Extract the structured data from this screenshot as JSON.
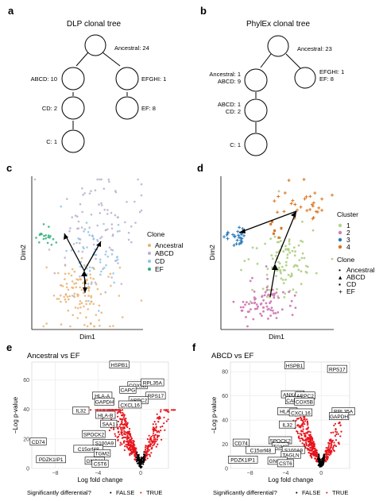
{
  "panels": {
    "a": {
      "letter": "a",
      "title": "DLP clonal tree",
      "nodes": [
        {
          "id": "anc",
          "label": "Ancestral: 24"
        },
        {
          "id": "abcd",
          "label": "ABCD: 10"
        },
        {
          "id": "efghi",
          "label": "EFGHI: 1"
        },
        {
          "id": "cd",
          "label": "CD: 2"
        },
        {
          "id": "ef",
          "label": "EF: 8"
        },
        {
          "id": "c",
          "label": "C: 1"
        }
      ]
    },
    "b": {
      "letter": "b",
      "title": "PhylEx clonal tree",
      "nodes": [
        {
          "id": "anc",
          "label": "Ancestral: 23"
        },
        {
          "id": "anc1",
          "label_lines": [
            "Ancestral: 1",
            "ABCD: 9"
          ]
        },
        {
          "id": "efghi",
          "label_lines": [
            "EFGHI: 1",
            "EF: 8"
          ]
        },
        {
          "id": "abcd1",
          "label_lines": [
            "ABCD: 1",
            "CD: 2"
          ]
        },
        {
          "id": "c",
          "label": "C: 1"
        }
      ]
    },
    "c": {
      "letter": "c",
      "xlabel": "Dim1",
      "ylabel": "Dim2",
      "legend_title": "Clone",
      "legend": [
        {
          "name": "Ancestral",
          "color": "#e8b270"
        },
        {
          "name": "ABCD",
          "color": "#b8b0cc"
        },
        {
          "name": "CD",
          "color": "#8fc3e6"
        },
        {
          "name": "EF",
          "color": "#2fae7a"
        }
      ]
    },
    "d": {
      "letter": "d",
      "xlabel": "Dim1",
      "ylabel": "Dim2",
      "cluster_title": "Cluster",
      "clusters": [
        {
          "name": "1",
          "color": "#b6d28e"
        },
        {
          "name": "2",
          "color": "#d27fb8"
        },
        {
          "name": "3",
          "color": "#2a78b8"
        },
        {
          "name": "4",
          "color": "#d9731e"
        }
      ],
      "clone_title": "Clone",
      "clones": [
        {
          "name": "Ancestral",
          "symbol": "•"
        },
        {
          "name": "ABCD",
          "symbol": "▴"
        },
        {
          "name": "CD",
          "symbol": "▪"
        },
        {
          "name": "EF",
          "symbol": "+"
        }
      ]
    },
    "e": {
      "letter": "e",
      "title": "Ancestral vs EF",
      "xlabel": "Log fold change",
      "ylabel": "−Log p-value"
    },
    "f": {
      "letter": "f",
      "title": "ABCD vs EF",
      "xlabel": "Log fold change",
      "ylabel": "−Log p-value"
    }
  },
  "volcano_legend": {
    "title": "Significantly differential?",
    "items": [
      {
        "symbol": "•",
        "label": "FALSE",
        "color": "#000000"
      },
      {
        "symbol": "•",
        "label": "TRUE",
        "color": "#e8141c"
      }
    ]
  },
  "chart_data": [
    {
      "panel": "c",
      "type": "scatter",
      "xlabel": "Dim1",
      "ylabel": "Dim2",
      "legend_title": "Clone",
      "series": [
        {
          "name": "Ancestral"
        },
        {
          "name": "ABCD"
        },
        {
          "name": "CD"
        },
        {
          "name": "EF"
        }
      ],
      "grid": false,
      "legend_position": "right"
    },
    {
      "panel": "d",
      "type": "scatter",
      "xlabel": "Dim1",
      "ylabel": "Dim2",
      "legend_title": "Cluster",
      "series": [
        {
          "name": "1"
        },
        {
          "name": "2"
        },
        {
          "name": "3"
        },
        {
          "name": "4"
        }
      ],
      "grid": false,
      "legend_position": "right"
    },
    {
      "panel": "e",
      "type": "scatter",
      "title": "Ancestral vs EF",
      "xlabel": "Log fold change",
      "ylabel": "−Log p-value",
      "xlim": [
        -10.2,
        2.6
      ],
      "ylim": [
        0,
        72
      ],
      "xticks": [
        -8,
        -4,
        0
      ],
      "yticks": [
        0,
        20,
        40,
        60
      ],
      "grid": true,
      "legend_position": "bottom",
      "labeled_genes": [
        {
          "gene": "HSPB1",
          "x": -2.0,
          "y": 70
        },
        {
          "gene": "COX5B",
          "x": -0.3,
          "y": 56
        },
        {
          "gene": "RPL35A",
          "x": 1.1,
          "y": 58
        },
        {
          "gene": "CAPG",
          "x": -1.2,
          "y": 53
        },
        {
          "gene": "RPS17",
          "x": 1.4,
          "y": 49
        },
        {
          "gene": "HLA-A",
          "x": -3.6,
          "y": 49
        },
        {
          "gene": "ARPC2",
          "x": -0.2,
          "y": 46
        },
        {
          "gene": "GAPDH",
          "x": -3.4,
          "y": 45
        },
        {
          "gene": "CXCL16",
          "x": -1.0,
          "y": 43
        },
        {
          "gene": "IL32",
          "x": -5.6,
          "y": 39
        },
        {
          "gene": "HLA-B",
          "x": -3.3,
          "y": 36
        },
        {
          "gene": "SAA1",
          "x": -3.0,
          "y": 30
        },
        {
          "gene": "SPOCK2",
          "x": -4.4,
          "y": 23
        },
        {
          "gene": "CD74",
          "x": -9.6,
          "y": 18
        },
        {
          "gene": "S100A9",
          "x": -3.4,
          "y": 17
        },
        {
          "gene": "C15orf48",
          "x": -4.9,
          "y": 13
        },
        {
          "gene": "TGM2",
          "x": -3.6,
          "y": 10
        },
        {
          "gene": "PDZK1IP1",
          "x": -8.4,
          "y": 6
        },
        {
          "gene": "GNG11",
          "x": -4.3,
          "y": 5
        },
        {
          "gene": "CST6",
          "x": -3.8,
          "y": 3
        }
      ]
    },
    {
      "panel": "f",
      "type": "scatter",
      "title": "ABCD vs EF",
      "xlabel": "Log fold change",
      "ylabel": "−Log p-value",
      "xlim": [
        -10.2,
        3.2
      ],
      "ylim": [
        0,
        88
      ],
      "xticks": [
        -8,
        -4,
        0
      ],
      "yticks": [
        0,
        20,
        40,
        60,
        80
      ],
      "grid": true,
      "legend_position": "bottom",
      "labeled_genes": [
        {
          "gene": "HSPB1",
          "x": -3.0,
          "y": 85
        },
        {
          "gene": "RPS17",
          "x": 1.8,
          "y": 82
        },
        {
          "gene": "ANXA11",
          "x": -3.2,
          "y": 61
        },
        {
          "gene": "ARPC2",
          "x": -1.8,
          "y": 60
        },
        {
          "gene": "CAPG",
          "x": -3.1,
          "y": 56
        },
        {
          "gene": "COX5B",
          "x": -1.9,
          "y": 55
        },
        {
          "gene": "RPL35A",
          "x": 2.5,
          "y": 47
        },
        {
          "gene": "HLA-A",
          "x": -3.8,
          "y": 47
        },
        {
          "gene": "CXCL16",
          "x": -2.3,
          "y": 46
        },
        {
          "gene": "GAPDH",
          "x": 2.0,
          "y": 43
        },
        {
          "gene": "IL32",
          "x": -3.8,
          "y": 36
        },
        {
          "gene": "SPOCK2",
          "x": -4.6,
          "y": 23
        },
        {
          "gene": "CD74",
          "x": -9.0,
          "y": 21
        },
        {
          "gene": "TGM2",
          "x": -4.6,
          "y": 18
        },
        {
          "gene": "S100A9",
          "x": -3.1,
          "y": 15
        },
        {
          "gene": "C15orf48",
          "x": -6.8,
          "y": 15
        },
        {
          "gene": "TAGLN",
          "x": -3.4,
          "y": 11
        },
        {
          "gene": "PDZK1IP1",
          "x": -8.8,
          "y": 7
        },
        {
          "gene": "GNG11",
          "x": -4.9,
          "y": 6
        },
        {
          "gene": "CST6",
          "x": -4.0,
          "y": 4
        }
      ]
    }
  ]
}
